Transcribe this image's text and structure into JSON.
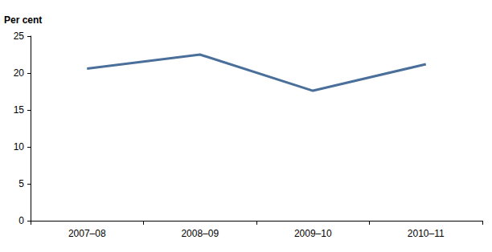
{
  "chart_data": {
    "type": "line",
    "ylabel": "Per cent",
    "categories": [
      "2007–08",
      "2008–09",
      "2009–10",
      "2010–11"
    ],
    "values": [
      20.6,
      22.5,
      17.6,
      21.2
    ],
    "color": "#4a6f9a",
    "ylim": [
      0,
      25
    ],
    "yticks": [
      0,
      5,
      10,
      15,
      20,
      25
    ],
    "grid": false
  }
}
